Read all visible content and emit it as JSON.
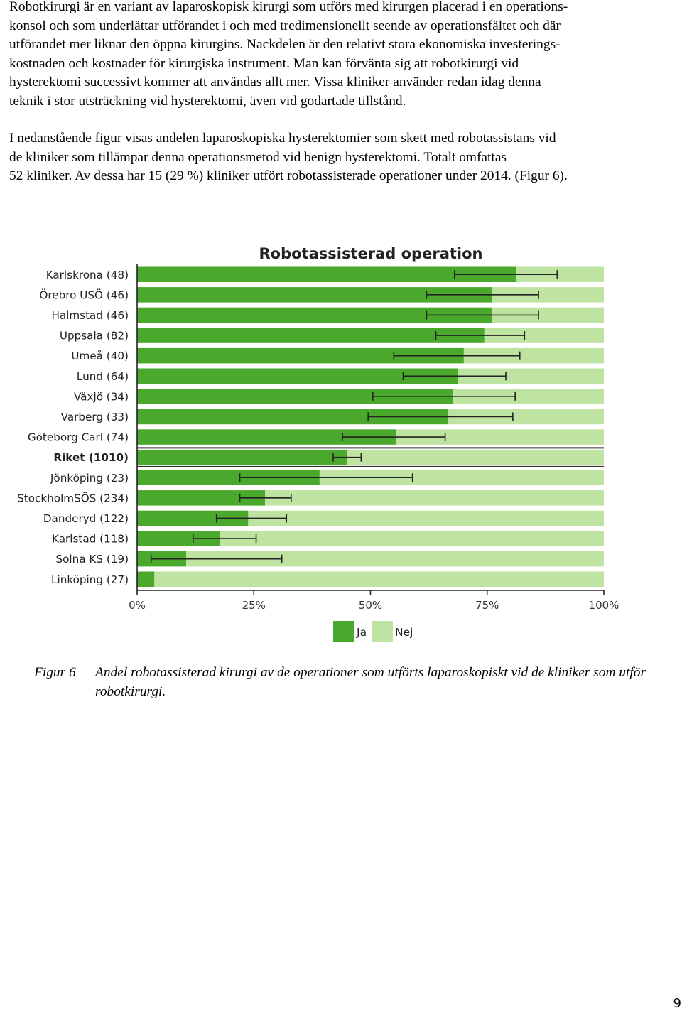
{
  "paragraphs": [
    [
      "Robotkirurgi är en variant av laparoskopisk kirurgi som utförs med kirurgen placerad i en operations-",
      "konsol och som underlättar utförandet i och med tredimensionellt seende av operationsfältet och där",
      "utförandet mer liknar den öppna kirurgins. Nackdelen är den relativt stora ekonomiska investerings-",
      "kostnaden och kostnader för kirurgiska instrument. Man kan förvänta sig att robotkirurgi vid",
      "hysterektomi successivt kommer att användas allt mer. Vissa kliniker använder redan idag denna",
      "teknik i stor utsträckning vid hysterektomi, även vid godartade tillstånd."
    ],
    [
      "I nedanstående figur visas andelen laparoskopiska hysterektomier som skett med robotassistans vid",
      "de kliniker som tillämpar denna operationsmetod vid benign hysterektomi. Totalt omfattas",
      "52 kliniker. Av dessa har 15 (29 %) kliniker utfört robotassisterade operationer under 2014. (Figur 6)."
    ]
  ],
  "chart_data": {
    "type": "bar",
    "orientation": "horizontal",
    "stacked": true,
    "title": "Robotassisterad operation",
    "xlabel": "",
    "ylabel": "",
    "xlim": [
      0,
      100
    ],
    "xticks": [
      "0%",
      "25%",
      "50%",
      "75%",
      "100%"
    ],
    "xtick_values": [
      0,
      25,
      50,
      75,
      100
    ],
    "categories": [
      "Karlskrona (48)",
      "Örebro USÖ (46)",
      "Halmstad (46)",
      "Uppsala (82)",
      "Umeå (40)",
      "Lund (64)",
      "Växjö (34)",
      "Varberg (33)",
      "Göteborg Carl (74)",
      "Riket (1010)",
      "Jönköping (23)",
      "StockholmSÖS (234)",
      "Danderyd (122)",
      "Karlstad (118)",
      "Solna KS (19)",
      "Linköping (27)"
    ],
    "highlight": "Riket (1010)",
    "series": [
      {
        "name": "Ja",
        "color": "#4aa82c",
        "values": [
          81.3,
          76.1,
          76.1,
          74.4,
          70.0,
          68.8,
          67.6,
          66.7,
          55.4,
          44.9,
          39.1,
          27.4,
          23.8,
          17.8,
          10.5,
          3.7
        ]
      },
      {
        "name": "Nej",
        "color": "#bfe3a0",
        "values": [
          18.7,
          23.9,
          23.9,
          25.6,
          30.0,
          31.2,
          32.4,
          33.3,
          44.6,
          55.1,
          60.9,
          72.6,
          76.2,
          82.2,
          89.5,
          96.3
        ]
      }
    ],
    "error_low": [
      68.0,
      62.0,
      62.0,
      64.0,
      55.0,
      57.0,
      50.5,
      49.5,
      44.0,
      42.0,
      22.0,
      22.0,
      17.0,
      12.0,
      3.0,
      null
    ],
    "error_high": [
      90.0,
      86.0,
      86.0,
      83.0,
      82.0,
      79.0,
      81.0,
      80.5,
      66.0,
      48.0,
      59.0,
      33.0,
      32.0,
      25.5,
      31.0,
      null
    ],
    "legend": {
      "position": "bottom-center",
      "labels": [
        "Ja",
        "Nej"
      ]
    }
  },
  "caption": {
    "label": "Figur 6",
    "text": "Andel robotassisterad kirurgi av de operationer som utförts laparoskopiskt vid de kliniker som utför robotkirurgi."
  },
  "page_number": "9"
}
